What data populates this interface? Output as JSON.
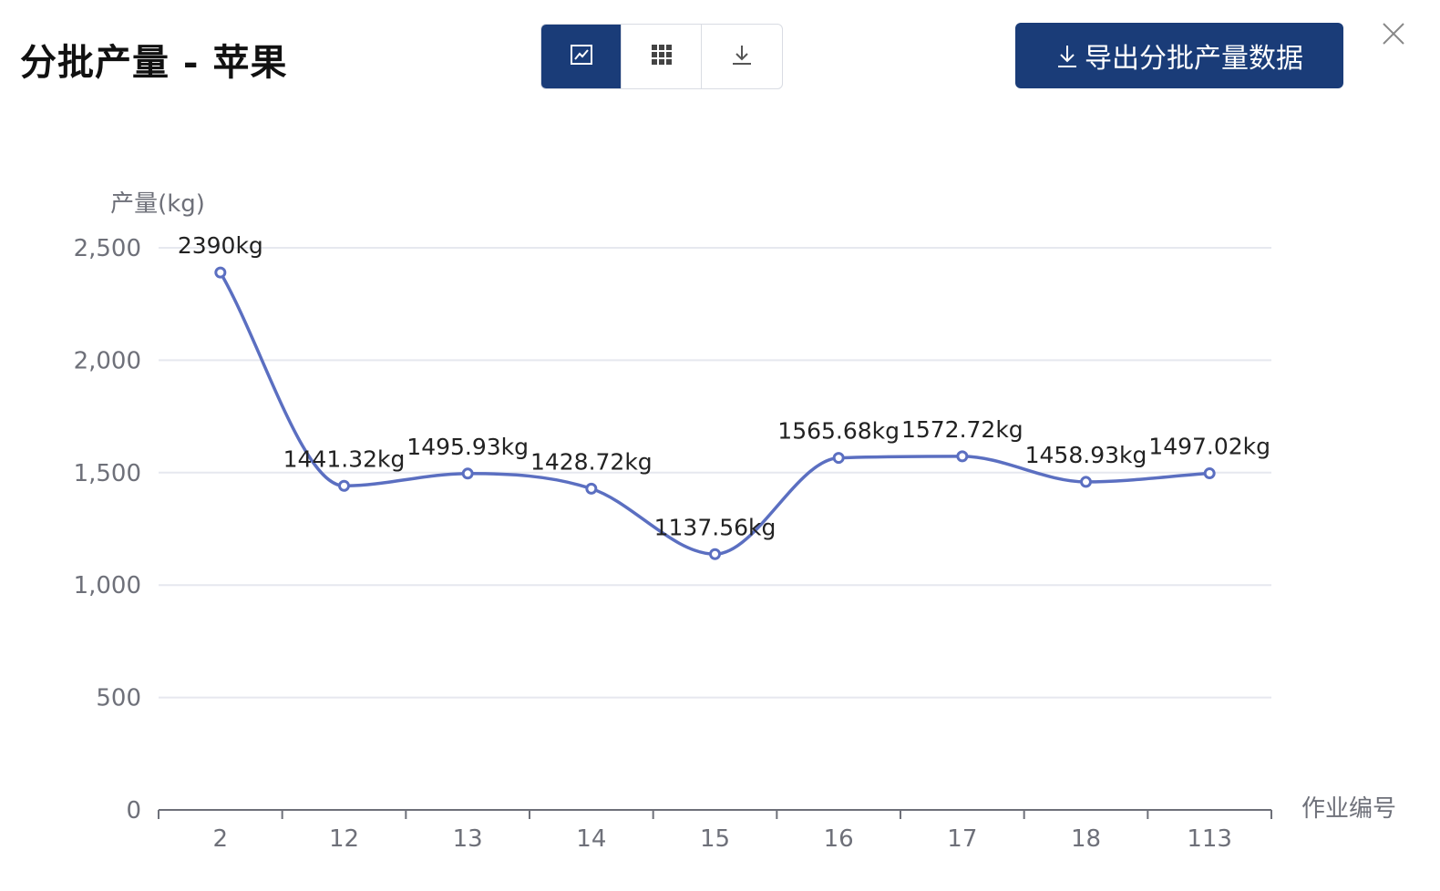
{
  "header": {
    "title": "分批产量 - 苹果",
    "view_toggle": [
      {
        "icon": "line-chart-icon",
        "active": true
      },
      {
        "icon": "grid-icon",
        "active": false
      },
      {
        "icon": "download-icon",
        "active": false
      }
    ],
    "export_label": "导出分批产量数据",
    "export_icon": "download-icon",
    "close_icon": "close-icon"
  },
  "colors": {
    "primary": "#1a3c78",
    "series": "#5b6fc1",
    "grid": "#e6e8ef",
    "axis_text": "#6e7079"
  },
  "chart_data": {
    "type": "line",
    "ylabel": "产量(kg)",
    "xlabel": "作业编号",
    "ylim": [
      0,
      2500
    ],
    "yticks": [
      0,
      500,
      1000,
      1500,
      2000,
      2500
    ],
    "ytick_labels": [
      "0",
      "500",
      "1,000",
      "1,500",
      "2,000",
      "2,500"
    ],
    "categories": [
      "2",
      "12",
      "13",
      "14",
      "15",
      "16",
      "17",
      "18",
      "113"
    ],
    "values": [
      2390,
      1441.32,
      1495.93,
      1428.72,
      1137.56,
      1565.68,
      1572.72,
      1458.93,
      1497.02
    ],
    "data_labels": [
      "2390kg",
      "1441.32kg",
      "1495.93kg",
      "1428.72kg",
      "1137.56kg",
      "1565.68kg",
      "1572.72kg",
      "1458.93kg",
      "1497.02kg"
    ],
    "smooth": true,
    "grid": true
  }
}
